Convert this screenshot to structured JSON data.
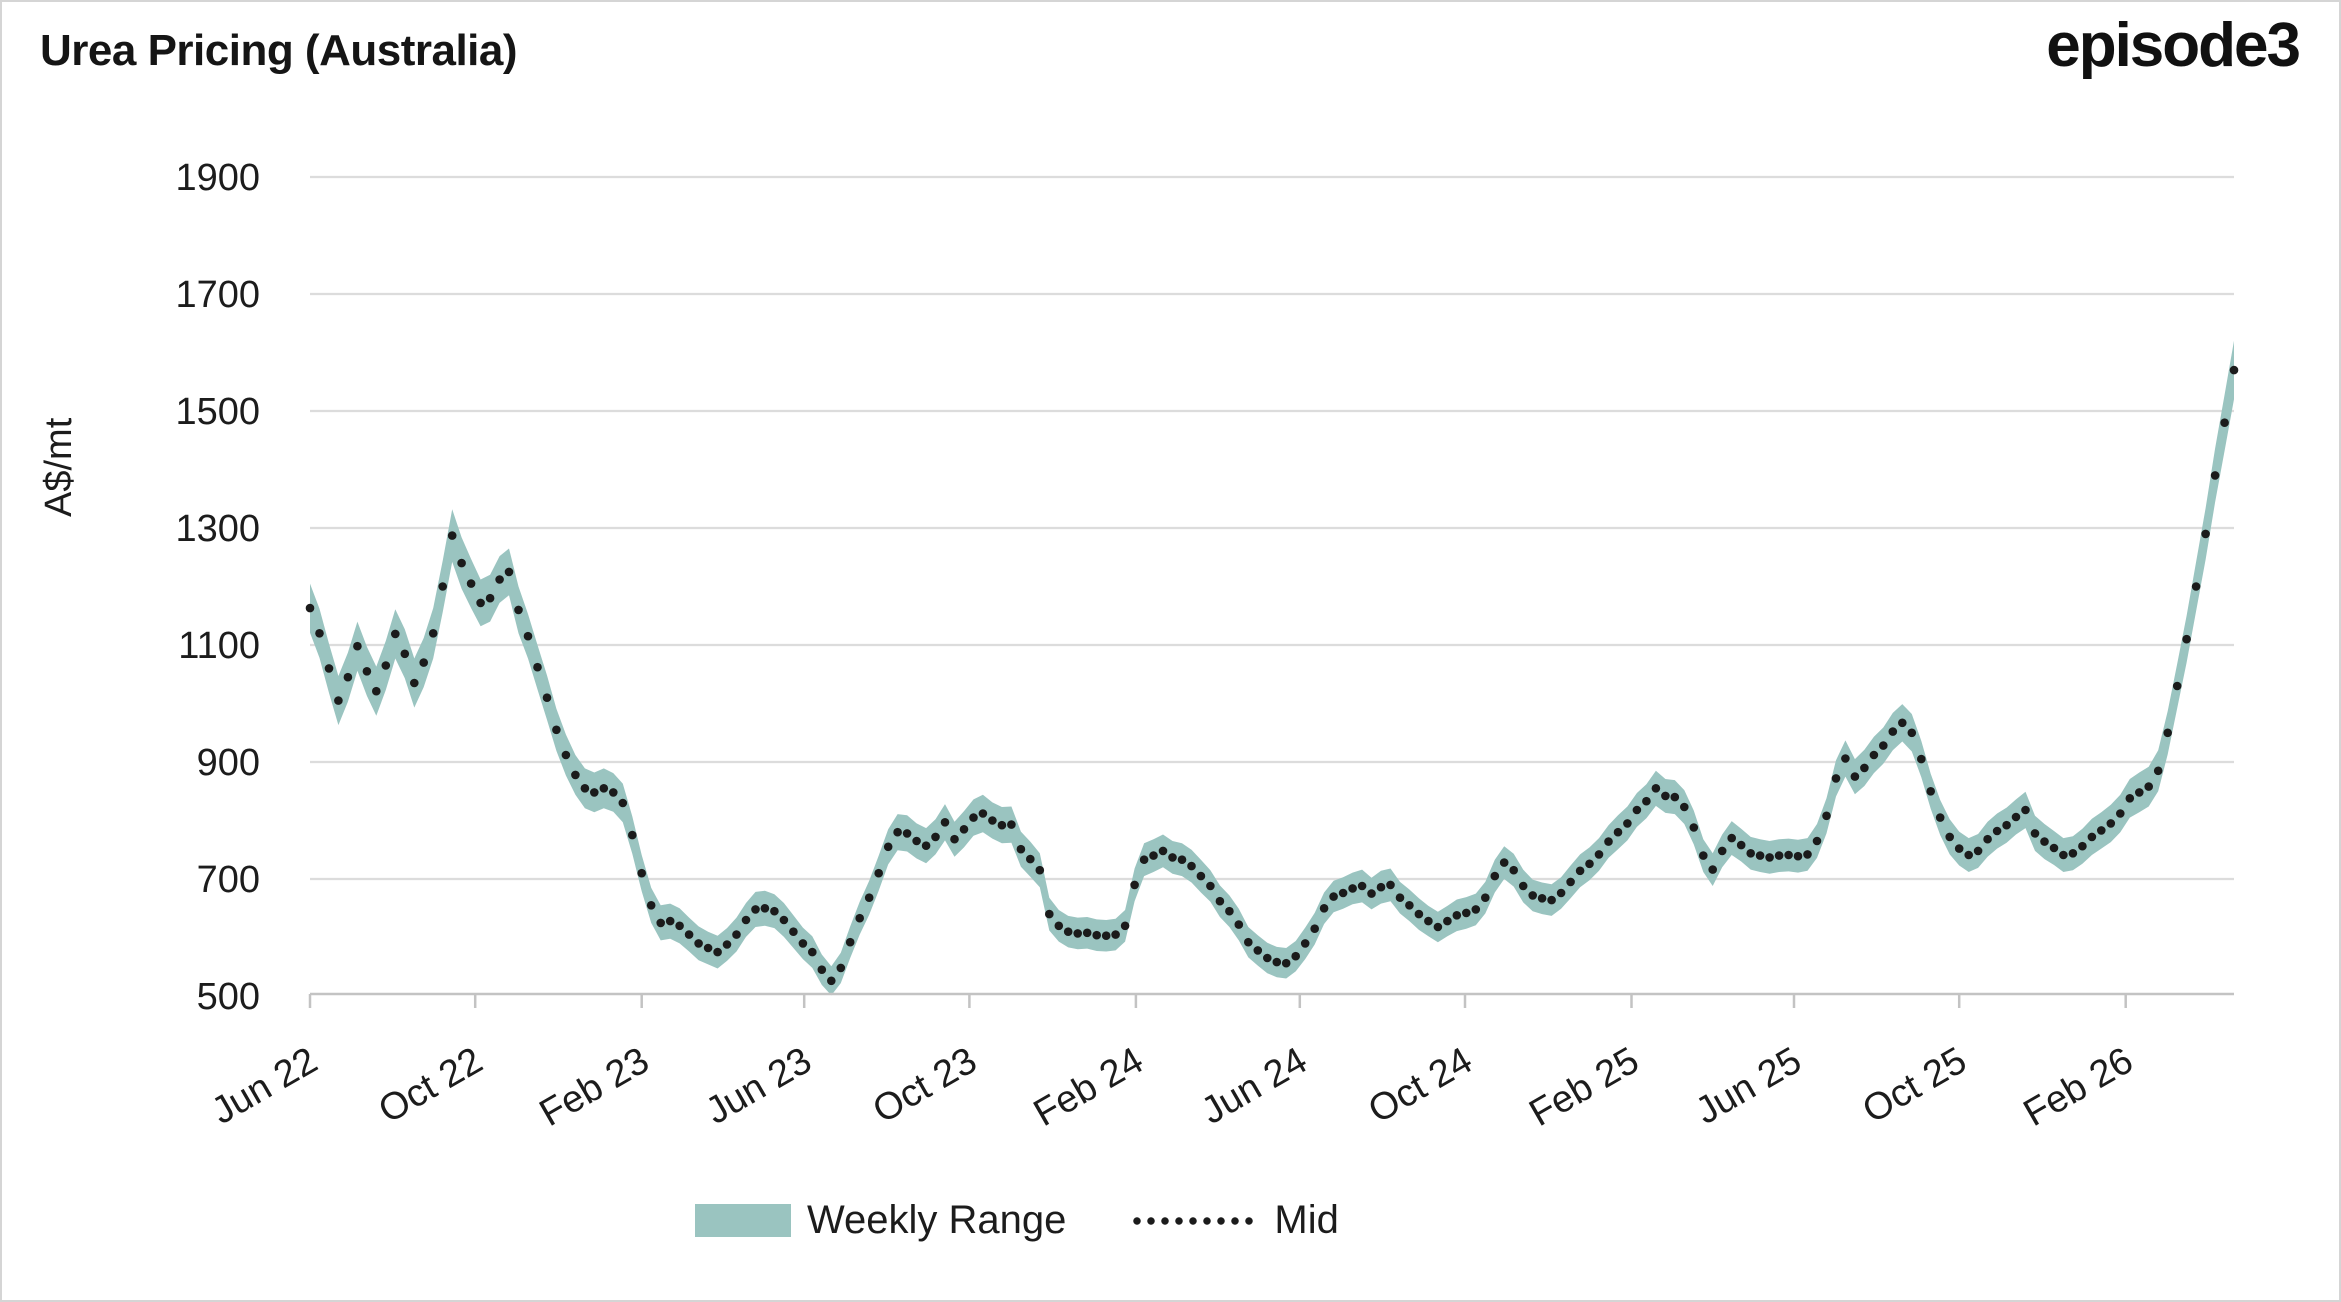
{
  "header": {
    "title": "Urea Pricing (Australia)",
    "logo": "episode3"
  },
  "legend": {
    "range_label": "Weekly Range",
    "mid_label": "Mid"
  },
  "colors": {
    "band": "#9ac4c0",
    "mid_dot": "#1b1b1b",
    "gridline": "#dcdcdc",
    "axis": "#c3c3c3",
    "text": "#1c1c1c",
    "background": "#ffffff",
    "border": "#d5d5d5"
  },
  "chart_data": {
    "type": "area",
    "subtype": "weekly-range-band-with-dotted-mid-line",
    "title": "Urea Pricing (Australia)",
    "ylabel": "A$/mt",
    "xlabel": "",
    "ylim": [
      430,
      1960
    ],
    "yticks": [
      500,
      700,
      900,
      1100,
      1300,
      1500,
      1700,
      1900
    ],
    "grid": "horizontal-only",
    "legend_position": "bottom-center",
    "frequency": "weekly",
    "x_start": "2022-06-01",
    "x_end": "2026-04-22",
    "xticks": [
      [
        "2022-06-01",
        "Jun 22"
      ],
      [
        "2022-10-01",
        "Oct 22"
      ],
      [
        "2023-02-01",
        "Feb 23"
      ],
      [
        "2023-06-01",
        "Jun 23"
      ],
      [
        "2023-10-01",
        "Oct 23"
      ],
      [
        "2024-02-01",
        "Feb 24"
      ],
      [
        "2024-06-01",
        "Jun 24"
      ],
      [
        "2024-10-01",
        "Oct 24"
      ],
      [
        "2025-02-01",
        "Feb 25"
      ],
      [
        "2025-06-01",
        "Jun 25"
      ],
      [
        "2025-10-01",
        "Oct 25"
      ],
      [
        "2026-02-01",
        "Feb 26"
      ]
    ],
    "series": [
      {
        "name": "Weekly Range",
        "type": "band"
      },
      {
        "name": "Mid",
        "type": "dotted-line"
      }
    ],
    "points_format": [
      "week_date",
      "range_low",
      "mid",
      "range_high"
    ],
    "points": [
      [
        "2022-06-01",
        1121,
        1163,
        1205
      ],
      [
        "2022-06-08",
        1078,
        1120,
        1162
      ],
      [
        "2022-06-15",
        1018,
        1060,
        1102
      ],
      [
        "2022-06-22",
        963,
        1005,
        1047
      ],
      [
        "2022-06-29",
        1003,
        1045,
        1087
      ],
      [
        "2022-07-06",
        1056,
        1098,
        1140
      ],
      [
        "2022-07-13",
        1013,
        1055,
        1097
      ],
      [
        "2022-07-20",
        979,
        1021,
        1063
      ],
      [
        "2022-07-27",
        1023,
        1065,
        1107
      ],
      [
        "2022-08-03",
        1077,
        1119,
        1161
      ],
      [
        "2022-08-10",
        1043,
        1085,
        1127
      ],
      [
        "2022-08-17",
        993,
        1035,
        1077
      ],
      [
        "2022-08-24",
        1028,
        1070,
        1112
      ],
      [
        "2022-08-31",
        1077,
        1120,
        1163
      ],
      [
        "2022-09-07",
        1156,
        1200,
        1244
      ],
      [
        "2022-09-14",
        1242,
        1287,
        1332
      ],
      [
        "2022-09-21",
        1196,
        1240,
        1284
      ],
      [
        "2022-09-28",
        1163,
        1205,
        1247
      ],
      [
        "2022-10-05",
        1132,
        1172,
        1212
      ],
      [
        "2022-10-12",
        1140,
        1180,
        1220
      ],
      [
        "2022-10-19",
        1172,
        1212,
        1252
      ],
      [
        "2022-10-26",
        1185,
        1225,
        1265
      ],
      [
        "2022-11-02",
        1120,
        1160,
        1200
      ],
      [
        "2022-11-09",
        1077,
        1115,
        1153
      ],
      [
        "2022-11-16",
        1024,
        1062,
        1100
      ],
      [
        "2022-11-23",
        972,
        1010,
        1048
      ],
      [
        "2022-11-30",
        919,
        955,
        991
      ],
      [
        "2022-12-07",
        877,
        912,
        947
      ],
      [
        "2022-12-14",
        844,
        878,
        912
      ],
      [
        "2022-12-21",
        821,
        855,
        889
      ],
      [
        "2022-12-28",
        814,
        848,
        882
      ],
      [
        "2023-01-04",
        821,
        855,
        889
      ],
      [
        "2023-01-11",
        815,
        848,
        881
      ],
      [
        "2023-01-18",
        797,
        830,
        863
      ],
      [
        "2023-01-25",
        743,
        775,
        807
      ],
      [
        "2023-02-01",
        679,
        710,
        741
      ],
      [
        "2023-02-08",
        625,
        655,
        685
      ],
      [
        "2023-02-15",
        595,
        625,
        655
      ],
      [
        "2023-02-22",
        598,
        628,
        658
      ],
      [
        "2023-03-01",
        590,
        620,
        650
      ],
      [
        "2023-03-08",
        576,
        605,
        634
      ],
      [
        "2023-03-15",
        561,
        590,
        619
      ],
      [
        "2023-03-22",
        554,
        582,
        610
      ],
      [
        "2023-03-29",
        547,
        575,
        603
      ],
      [
        "2023-04-05",
        560,
        588,
        616
      ],
      [
        "2023-04-12",
        576,
        605,
        634
      ],
      [
        "2023-04-19",
        601,
        630,
        659
      ],
      [
        "2023-04-26",
        618,
        648,
        678
      ],
      [
        "2023-05-03",
        620,
        650,
        680
      ],
      [
        "2023-05-10",
        616,
        645,
        674
      ],
      [
        "2023-05-17",
        601,
        630,
        659
      ],
      [
        "2023-05-24",
        582,
        610,
        638
      ],
      [
        "2023-05-31",
        563,
        590,
        617
      ],
      [
        "2023-06-07",
        548,
        575,
        602
      ],
      [
        "2023-06-14",
        519,
        545,
        571
      ],
      [
        "2023-06-21",
        501,
        526,
        551
      ],
      [
        "2023-06-28",
        522,
        548,
        574
      ],
      [
        "2023-07-05",
        565,
        592,
        619
      ],
      [
        "2023-07-12",
        605,
        633,
        661
      ],
      [
        "2023-07-19",
        639,
        668,
        697
      ],
      [
        "2023-07-26",
        680,
        710,
        740
      ],
      [
        "2023-08-02",
        725,
        755,
        785
      ],
      [
        "2023-08-09",
        749,
        780,
        811
      ],
      [
        "2023-08-16",
        747,
        778,
        809
      ],
      [
        "2023-08-23",
        735,
        765,
        795
      ],
      [
        "2023-08-30",
        727,
        757,
        787
      ],
      [
        "2023-09-06",
        742,
        772,
        802
      ],
      [
        "2023-09-13",
        766,
        797,
        828
      ],
      [
        "2023-09-20",
        738,
        768,
        798
      ],
      [
        "2023-09-27",
        754,
        785,
        816
      ],
      [
        "2023-10-04",
        774,
        805,
        836
      ],
      [
        "2023-10-11",
        780,
        812,
        844
      ],
      [
        "2023-10-18",
        769,
        800,
        831
      ],
      [
        "2023-10-25",
        761,
        792,
        823
      ],
      [
        "2023-11-01",
        762,
        793,
        824
      ],
      [
        "2023-11-08",
        721,
        751,
        781
      ],
      [
        "2023-11-15",
        704,
        734,
        764
      ],
      [
        "2023-11-22",
        686,
        715,
        744
      ],
      [
        "2023-11-29",
        612,
        640,
        668
      ],
      [
        "2023-12-06",
        593,
        620,
        647
      ],
      [
        "2023-12-13",
        583,
        610,
        637
      ],
      [
        "2023-12-20",
        580,
        607,
        634
      ],
      [
        "2023-12-27",
        581,
        608,
        635
      ],
      [
        "2024-01-03",
        577,
        604,
        631
      ],
      [
        "2024-01-10",
        576,
        603,
        630
      ],
      [
        "2024-01-17",
        578,
        605,
        632
      ],
      [
        "2024-01-24",
        593,
        620,
        647
      ],
      [
        "2024-01-31",
        662,
        690,
        718
      ],
      [
        "2024-02-07",
        705,
        733,
        761
      ],
      [
        "2024-02-14",
        712,
        740,
        768
      ],
      [
        "2024-02-21",
        720,
        748,
        776
      ],
      [
        "2024-02-28",
        709,
        737,
        765
      ],
      [
        "2024-03-06",
        705,
        733,
        761
      ],
      [
        "2024-03-13",
        694,
        722,
        750
      ],
      [
        "2024-03-20",
        677,
        705,
        733
      ],
      [
        "2024-03-27",
        661,
        688,
        715
      ],
      [
        "2024-04-03",
        635,
        662,
        689
      ],
      [
        "2024-04-10",
        618,
        645,
        672
      ],
      [
        "2024-04-17",
        595,
        622,
        649
      ],
      [
        "2024-04-24",
        566,
        592,
        618
      ],
      [
        "2024-05-01",
        552,
        578,
        604
      ],
      [
        "2024-05-08",
        539,
        565,
        591
      ],
      [
        "2024-05-15",
        532,
        558,
        584
      ],
      [
        "2024-05-22",
        530,
        556,
        582
      ],
      [
        "2024-05-29",
        542,
        568,
        594
      ],
      [
        "2024-06-05",
        563,
        590,
        617
      ],
      [
        "2024-06-12",
        588,
        615,
        642
      ],
      [
        "2024-06-19",
        623,
        650,
        677
      ],
      [
        "2024-06-26",
        643,
        670,
        697
      ],
      [
        "2024-07-03",
        649,
        676,
        703
      ],
      [
        "2024-07-10",
        657,
        684,
        711
      ],
      [
        "2024-07-17",
        660,
        688,
        716
      ],
      [
        "2024-07-24",
        648,
        675,
        702
      ],
      [
        "2024-07-31",
        658,
        686,
        714
      ],
      [
        "2024-08-07",
        662,
        690,
        718
      ],
      [
        "2024-08-14",
        641,
        668,
        695
      ],
      [
        "2024-08-21",
        628,
        655,
        682
      ],
      [
        "2024-08-28",
        613,
        640,
        667
      ],
      [
        "2024-09-04",
        602,
        628,
        654
      ],
      [
        "2024-09-11",
        592,
        618,
        644
      ],
      [
        "2024-09-18",
        602,
        628,
        654
      ],
      [
        "2024-09-25",
        611,
        638,
        665
      ],
      [
        "2024-10-02",
        615,
        642,
        669
      ],
      [
        "2024-10-09",
        621,
        648,
        675
      ],
      [
        "2024-10-16",
        641,
        668,
        695
      ],
      [
        "2024-10-23",
        677,
        705,
        733
      ],
      [
        "2024-10-30",
        700,
        728,
        756
      ],
      [
        "2024-11-06",
        687,
        715,
        743
      ],
      [
        "2024-11-13",
        660,
        688,
        716
      ],
      [
        "2024-11-20",
        645,
        672,
        699
      ],
      [
        "2024-11-27",
        640,
        667,
        694
      ],
      [
        "2024-12-04",
        637,
        664,
        691
      ],
      [
        "2024-12-11",
        649,
        676,
        703
      ],
      [
        "2024-12-18",
        667,
        695,
        723
      ],
      [
        "2024-12-25",
        686,
        714,
        742
      ],
      [
        "2025-01-01",
        698,
        726,
        754
      ],
      [
        "2025-01-08",
        714,
        742,
        770
      ],
      [
        "2025-01-15",
        736,
        764,
        792
      ],
      [
        "2025-01-22",
        751,
        780,
        809
      ],
      [
        "2025-01-29",
        766,
        795,
        824
      ],
      [
        "2025-02-05",
        789,
        818,
        847
      ],
      [
        "2025-02-12",
        804,
        833,
        862
      ],
      [
        "2025-02-19",
        825,
        855,
        885
      ],
      [
        "2025-02-26",
        813,
        842,
        871
      ],
      [
        "2025-03-05",
        811,
        840,
        869
      ],
      [
        "2025-03-12",
        794,
        823,
        852
      ],
      [
        "2025-03-19",
        759,
        788,
        817
      ],
      [
        "2025-03-26",
        712,
        740,
        768
      ],
      [
        "2025-04-02",
        688,
        716,
        744
      ],
      [
        "2025-04-09",
        720,
        748,
        776
      ],
      [
        "2025-04-16",
        741,
        770,
        799
      ],
      [
        "2025-04-23",
        730,
        758,
        786
      ],
      [
        "2025-04-30",
        716,
        744,
        772
      ],
      [
        "2025-05-07",
        712,
        740,
        768
      ],
      [
        "2025-05-14",
        709,
        737,
        765
      ],
      [
        "2025-05-21",
        712,
        740,
        768
      ],
      [
        "2025-05-28",
        713,
        741,
        769
      ],
      [
        "2025-06-04",
        711,
        739,
        767
      ],
      [
        "2025-06-11",
        714,
        742,
        770
      ],
      [
        "2025-06-18",
        736,
        765,
        794
      ],
      [
        "2025-06-25",
        778,
        808,
        838
      ],
      [
        "2025-07-02",
        841,
        872,
        903
      ],
      [
        "2025-07-09",
        875,
        906,
        937
      ],
      [
        "2025-07-16",
        845,
        875,
        905
      ],
      [
        "2025-07-23",
        859,
        890,
        921
      ],
      [
        "2025-07-30",
        881,
        912,
        943
      ],
      [
        "2025-08-06",
        897,
        928,
        959
      ],
      [
        "2025-08-13",
        920,
        952,
        984
      ],
      [
        "2025-08-20",
        935,
        967,
        999
      ],
      [
        "2025-08-27",
        918,
        950,
        982
      ],
      [
        "2025-09-03",
        874,
        905,
        936
      ],
      [
        "2025-09-10",
        820,
        850,
        880
      ],
      [
        "2025-09-17",
        775,
        805,
        835
      ],
      [
        "2025-09-24",
        742,
        772,
        802
      ],
      [
        "2025-10-01",
        723,
        752,
        781
      ],
      [
        "2025-10-08",
        712,
        741,
        770
      ],
      [
        "2025-10-15",
        719,
        748,
        777
      ],
      [
        "2025-10-22",
        738,
        768,
        798
      ],
      [
        "2025-10-29",
        752,
        782,
        812
      ],
      [
        "2025-11-05",
        762,
        792,
        822
      ],
      [
        "2025-11-12",
        776,
        806,
        836
      ],
      [
        "2025-11-19",
        787,
        818,
        849
      ],
      [
        "2025-11-26",
        748,
        778,
        808
      ],
      [
        "2025-12-03",
        734,
        764,
        794
      ],
      [
        "2025-12-10",
        724,
        753,
        782
      ],
      [
        "2025-12-17",
        712,
        741,
        770
      ],
      [
        "2025-12-24",
        715,
        744,
        773
      ],
      [
        "2025-12-31",
        726,
        756,
        786
      ],
      [
        "2026-01-07",
        741,
        772,
        803
      ],
      [
        "2026-01-14",
        752,
        783,
        814
      ],
      [
        "2026-01-21",
        763,
        795,
        827
      ],
      [
        "2026-01-28",
        780,
        812,
        844
      ],
      [
        "2026-02-04",
        805,
        838,
        871
      ],
      [
        "2026-02-11",
        814,
        848,
        882
      ],
      [
        "2026-02-18",
        824,
        858,
        892
      ],
      [
        "2026-02-25",
        850,
        885,
        920
      ],
      [
        "2026-03-04",
        913,
        950,
        987
      ],
      [
        "2026-03-11",
        992,
        1030,
        1068
      ],
      [
        "2026-03-18",
        1070,
        1110,
        1150
      ],
      [
        "2026-03-25",
        1158,
        1200,
        1242
      ],
      [
        "2026-04-01",
        1246,
        1290,
        1334
      ],
      [
        "2026-04-08",
        1344,
        1390,
        1436
      ],
      [
        "2026-04-15",
        1432,
        1480,
        1528
      ],
      [
        "2026-04-22",
        1520,
        1570,
        1620
      ]
    ]
  }
}
